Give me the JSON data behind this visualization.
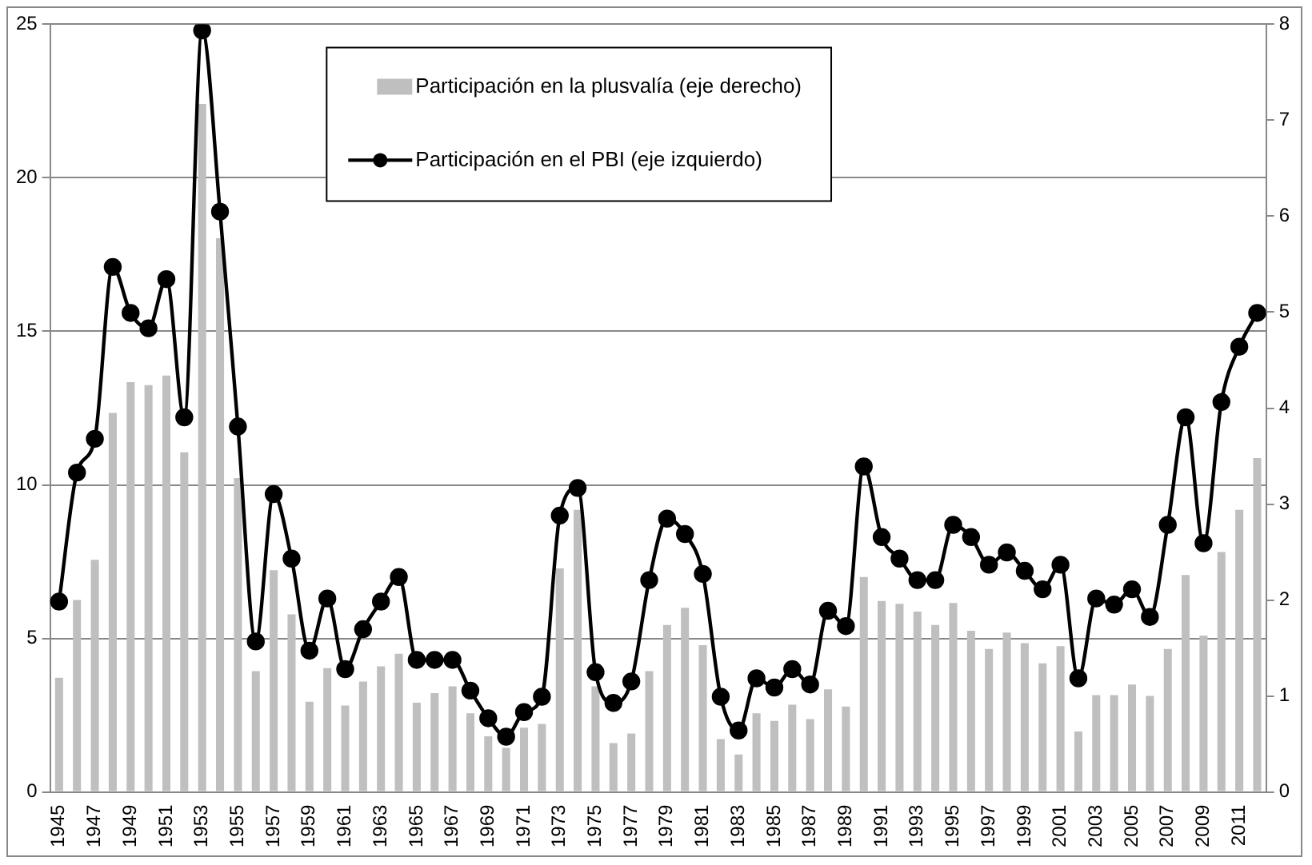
{
  "chart_data": {
    "type": "bar",
    "categories": [
      "1945",
      null,
      "1947",
      null,
      "1949",
      null,
      "1951",
      null,
      "1953",
      null,
      "1955",
      null,
      "1957",
      null,
      "1959",
      null,
      "1961",
      null,
      "1963",
      null,
      "1965",
      null,
      "1967",
      null,
      "1969",
      null,
      "1971",
      null,
      "1973",
      null,
      "1975",
      null,
      "1977",
      null,
      "1979",
      null,
      "1981",
      null,
      "1983",
      null,
      "1985",
      null,
      "1987",
      null,
      "1989",
      null,
      "1991",
      null,
      "1993",
      null,
      "1995",
      null,
      "1997",
      null,
      "1999",
      null,
      "2001",
      null,
      "2003",
      null,
      "2005",
      null,
      "2007",
      null,
      "2009",
      null,
      "2011",
      null
    ],
    "series": [
      {
        "name": "Participación en la plusvalía (eje derecho)",
        "axis": "y2",
        "color": "#bfbfbf",
        "values": [
          1.19,
          2.0,
          2.42,
          3.95,
          4.27,
          4.24,
          4.34,
          3.54,
          7.17,
          5.77,
          3.27,
          1.26,
          2.31,
          1.85,
          0.94,
          1.29,
          0.9,
          1.15,
          1.31,
          1.44,
          0.93,
          1.03,
          1.1,
          0.82,
          0.58,
          0.46,
          0.67,
          0.71,
          2.33,
          2.94,
          1.1,
          0.51,
          0.61,
          1.26,
          1.74,
          1.92,
          1.53,
          0.55,
          0.39,
          0.82,
          0.74,
          0.91,
          0.76,
          1.07,
          0.89,
          2.24,
          1.99,
          1.96,
          1.88,
          1.74,
          1.97,
          1.68,
          1.49,
          1.66,
          1.55,
          1.34,
          1.52,
          0.63,
          1.01,
          1.01,
          1.12,
          1.0,
          1.49,
          2.26,
          1.63,
          2.5,
          2.94,
          3.48
        ]
      },
      {
        "name": "Participación en el PBI (eje izquierdo)",
        "type": "line",
        "axis": "y",
        "color": "#000000",
        "marker": "circle",
        "values": [
          6.2,
          10.4,
          11.5,
          17.1,
          15.6,
          15.1,
          16.7,
          12.2,
          24.8,
          18.9,
          11.9,
          4.9,
          9.7,
          7.6,
          4.6,
          6.3,
          4.0,
          5.3,
          6.2,
          7.0,
          4.3,
          4.3,
          4.3,
          3.3,
          2.4,
          1.8,
          2.6,
          3.1,
          9.0,
          9.9,
          3.9,
          2.9,
          3.6,
          6.9,
          8.9,
          8.4,
          7.1,
          3.1,
          2.0,
          3.7,
          3.4,
          4.0,
          3.5,
          5.9,
          5.4,
          10.6,
          8.3,
          7.6,
          6.9,
          6.9,
          8.7,
          8.3,
          7.4,
          7.8,
          7.2,
          6.6,
          7.4,
          3.7,
          6.3,
          6.1,
          6.6,
          5.7,
          8.7,
          12.2,
          8.1,
          12.7,
          14.5,
          15.6
        ]
      }
    ],
    "ylim": [
      0,
      25
    ],
    "yticks": [
      0,
      5,
      10,
      15,
      20,
      25
    ],
    "y2lim": [
      0,
      8
    ],
    "y2ticks": [
      0,
      1,
      2,
      3,
      4,
      5,
      6,
      7,
      8
    ],
    "grid": "y",
    "legend": "top"
  }
}
